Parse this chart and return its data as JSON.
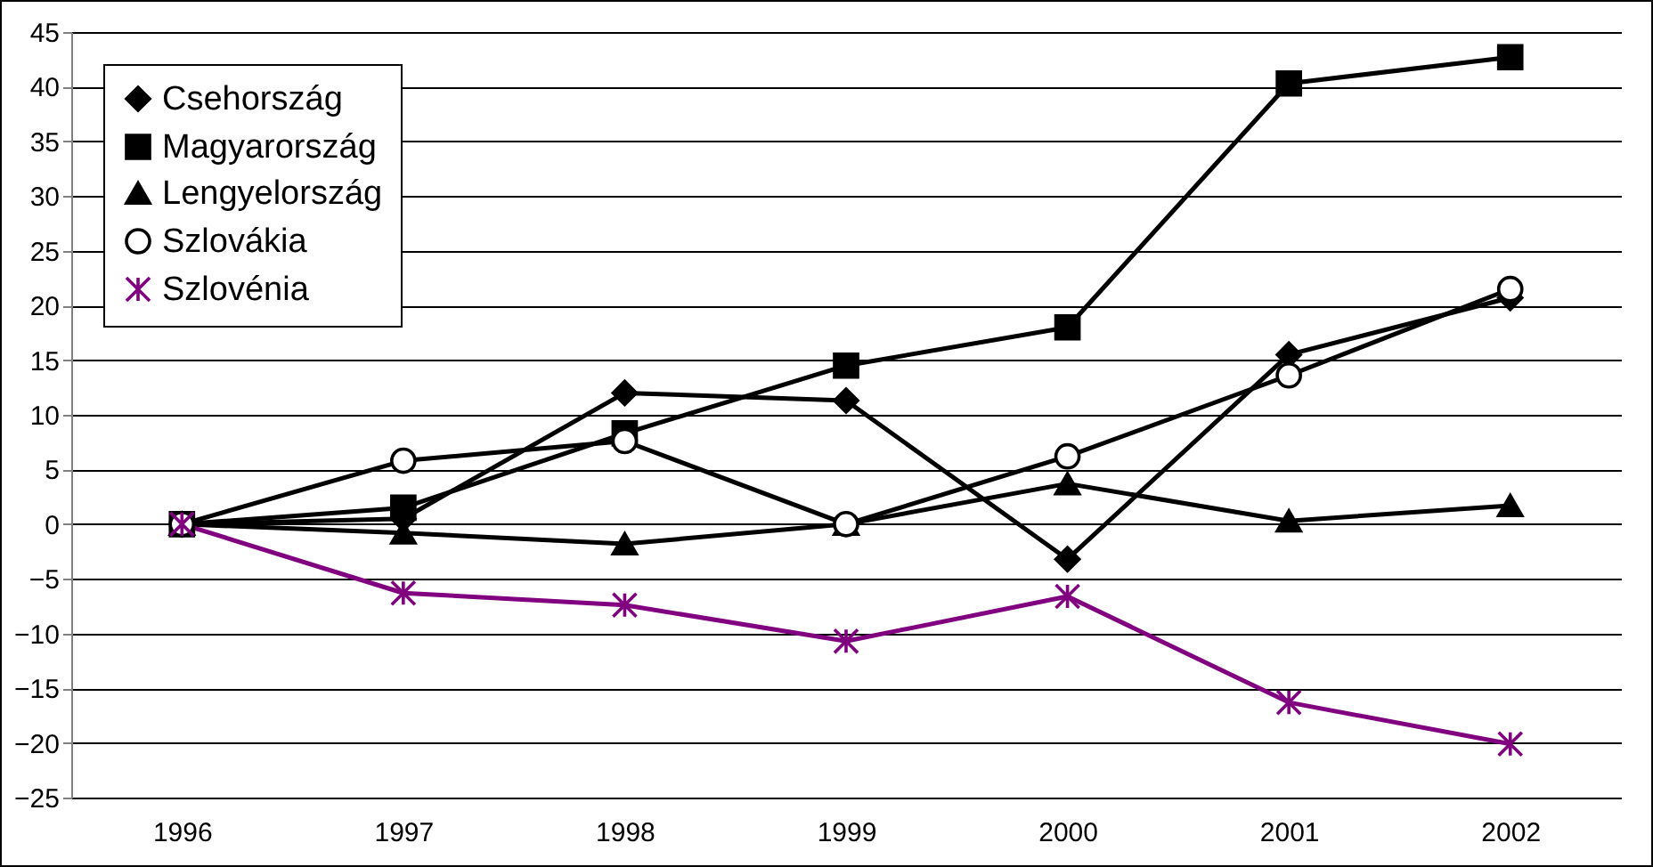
{
  "chart_data": {
    "type": "line",
    "categories": [
      "1996",
      "1997",
      "1998",
      "1999",
      "2000",
      "2001",
      "2002"
    ],
    "series": [
      {
        "name": "Csehország",
        "color": "#000000",
        "marker": "diamond",
        "values": [
          0,
          0.5,
          12,
          11.3,
          -3.2,
          15.5,
          20.7
        ]
      },
      {
        "name": "Magyarország",
        "color": "#000000",
        "marker": "square",
        "values": [
          0,
          1.5,
          8.3,
          14.5,
          18,
          40.3,
          42.7
        ]
      },
      {
        "name": "Lengyelország",
        "color": "#000000",
        "marker": "triangle",
        "values": [
          0,
          -0.8,
          -1.8,
          0,
          3.7,
          0.3,
          1.7
        ]
      },
      {
        "name": "Szlovákia",
        "color": "#000000",
        "marker": "circle",
        "values": [
          0,
          5.8,
          7.6,
          0,
          6.2,
          13.6,
          21.5
        ]
      },
      {
        "name": "Szlovénia",
        "color": "#800080",
        "marker": "cross",
        "values": [
          0,
          -6.3,
          -7.4,
          -10.7,
          -6.6,
          -16.3,
          -20.1
        ]
      }
    ],
    "ylim": [
      -25,
      45
    ],
    "yticks": [
      -25,
      -20,
      -15,
      -10,
      -5,
      0,
      5,
      10,
      15,
      20,
      25,
      30,
      35,
      40,
      45
    ],
    "grid": "y",
    "legend": "top left",
    "line_style": "solid"
  }
}
